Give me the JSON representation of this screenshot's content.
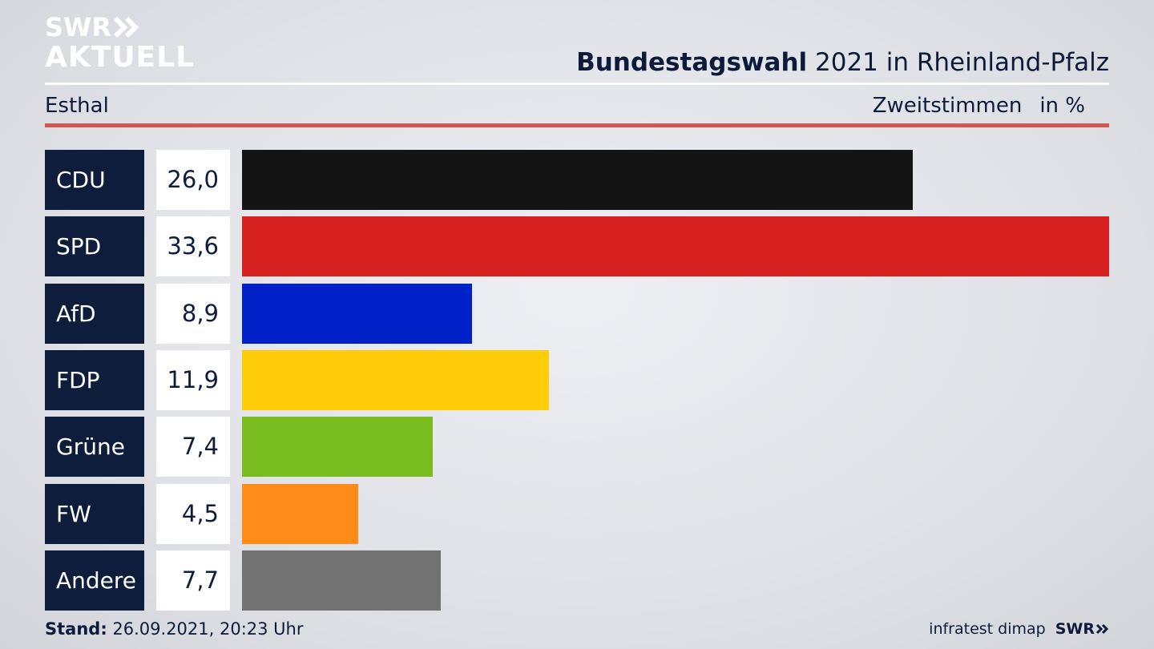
{
  "logo": {
    "line1": "SWR",
    "line2": "AKTUELL",
    "chevron_icon": "double-chevron-right-icon"
  },
  "header": {
    "title_bold": "Bundestagswahl",
    "title_rest": " 2021 in Rheinland-Pfalz",
    "location": "Esthal",
    "measure": "Zweitstimmen",
    "unit": "in %"
  },
  "chart_data": {
    "type": "bar",
    "orientation": "horizontal",
    "categories": [
      "CDU",
      "SPD",
      "AfD",
      "FDP",
      "Grüne",
      "FW",
      "Andere"
    ],
    "values": [
      26.0,
      33.6,
      8.9,
      11.9,
      7.4,
      4.5,
      7.7
    ],
    "value_labels": [
      "26,0",
      "33,6",
      "8,9",
      "11,9",
      "7,4",
      "4,5",
      "7,7"
    ],
    "colors": [
      "#141414",
      "#d72020",
      "#0021c8",
      "#ffcc0a",
      "#78bc1e",
      "#ff8c19",
      "#727272"
    ],
    "title": "Bundestagswahl 2021 in Rheinland-Pfalz",
    "ylabel": "Zweitstimmen in %",
    "grid": false,
    "legend": "none"
  },
  "footer": {
    "stand_label": "Stand:",
    "stand_value": " 26.09.2021, 20:23 Uhr",
    "source": "infratest dimap",
    "brand": "SWR",
    "brand_icon": "double-chevron-right-icon"
  },
  "colors": {
    "navy": "#0f1d3d",
    "accent_red": "#d3574f"
  }
}
